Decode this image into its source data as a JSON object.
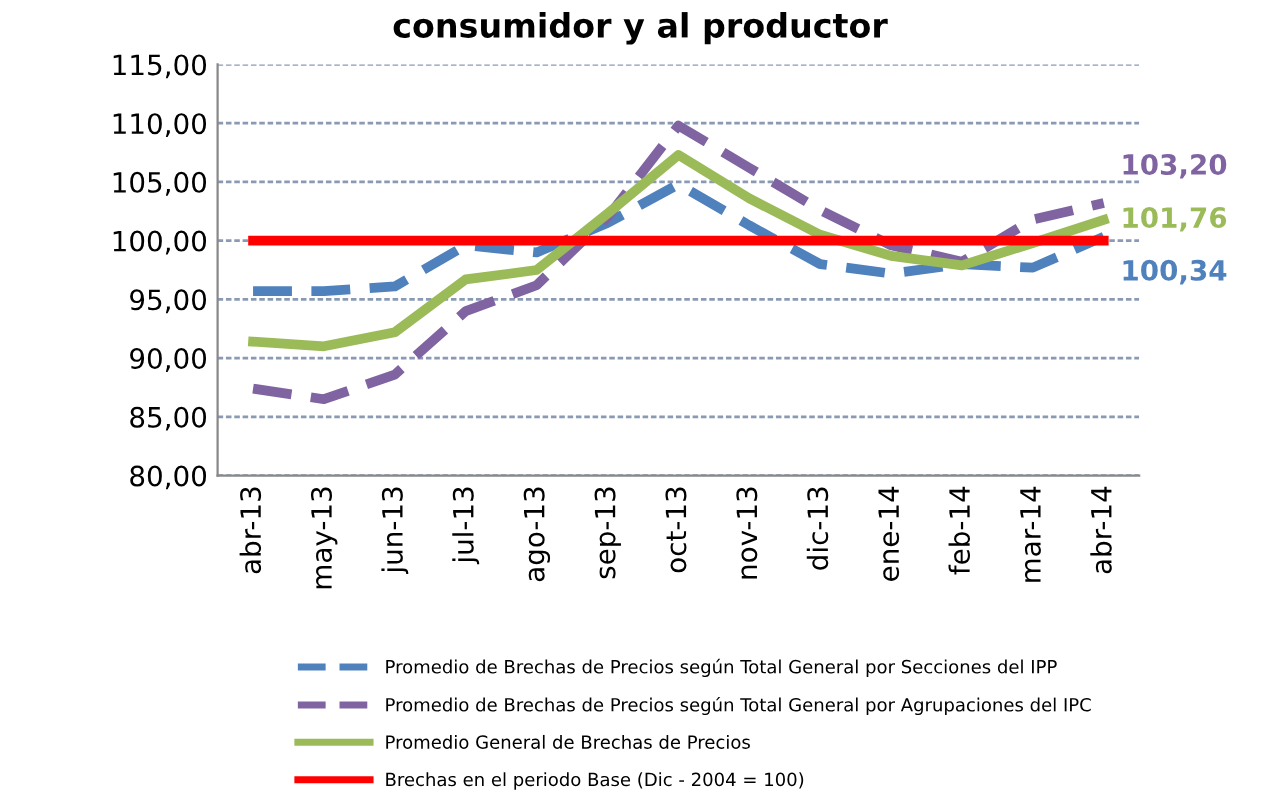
{
  "chart_data": {
    "type": "line",
    "title": "consumidor y al productor",
    "categories": [
      "abr-13",
      "may-13",
      "jun-13",
      "jul-13",
      "ago-13",
      "sep-13",
      "oct-13",
      "nov-13",
      "dic-13",
      "ene-14",
      "feb-14",
      "mar-14",
      "abr-14"
    ],
    "series": [
      {
        "name": "Promedio de Brechas de Precios según Total General por Secciones del IPP",
        "color": "#4f81bd",
        "line_style": "dashed",
        "values": [
          95.7,
          95.7,
          96.1,
          99.6,
          99.0,
          101.5,
          104.8,
          101.3,
          98.0,
          97.2,
          98.0,
          97.7,
          100.34
        ],
        "value_labels": [
          null,
          null,
          null,
          null,
          null,
          null,
          null,
          null,
          null,
          null,
          null,
          null,
          "100,34"
        ]
      },
      {
        "name": "Promedio de Brechas de Precios según Total General por Agrupaciones del IPC",
        "color": "#8064a2",
        "line_style": "dashed",
        "values": [
          87.4,
          86.5,
          88.6,
          94.0,
          96.2,
          102.0,
          109.8,
          106.2,
          102.6,
          99.6,
          98.2,
          101.8,
          103.2
        ],
        "value_labels": [
          null,
          null,
          null,
          null,
          null,
          null,
          null,
          null,
          null,
          null,
          null,
          null,
          "103,20"
        ]
      },
      {
        "name": "Promedio General de Brechas de Precios",
        "color": "#9bbb59",
        "line_style": "solid",
        "values": [
          91.4,
          91.0,
          92.2,
          96.7,
          97.5,
          102.3,
          107.3,
          103.6,
          100.5,
          98.7,
          97.9,
          99.8,
          101.76
        ],
        "value_labels": [
          null,
          null,
          null,
          null,
          null,
          null,
          null,
          null,
          null,
          null,
          null,
          null,
          "101,76"
        ]
      },
      {
        "name": "Brechas en el periodo Base (Dic - 2004 = 100)",
        "color": "#ff0000",
        "line_style": "solid",
        "values": [
          100,
          100,
          100,
          100,
          100,
          100,
          100,
          100,
          100,
          100,
          100,
          100,
          100
        ]
      }
    ],
    "ylim": [
      80,
      115
    ],
    "yticks": [
      {
        "value": 80,
        "label": "80,00"
      },
      {
        "value": 85,
        "label": "85,00"
      },
      {
        "value": 90,
        "label": "90,00"
      },
      {
        "value": 95,
        "label": "95,00"
      },
      {
        "value": 100,
        "label": "100,00"
      },
      {
        "value": 105,
        "label": "105,00"
      },
      {
        "value": 110,
        "label": "110,00"
      },
      {
        "value": 115,
        "label": "115,00"
      }
    ],
    "grid": "y",
    "legend": "bottom",
    "marker": "none"
  }
}
